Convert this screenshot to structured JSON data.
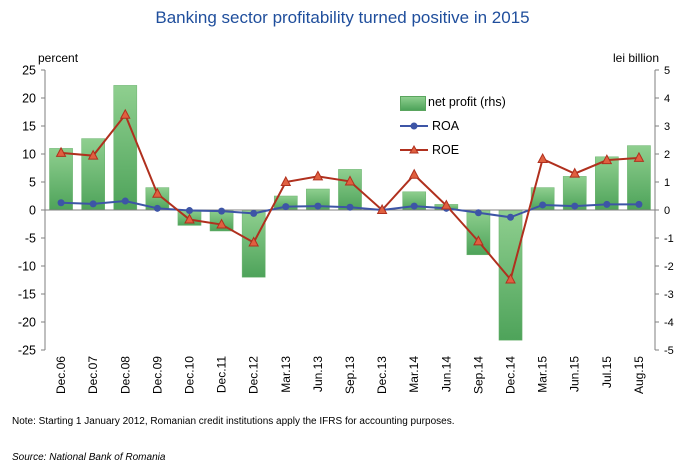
{
  "title": "Banking sector profitability turned positive in 2015",
  "note": "Note: Starting 1 January 2012, Romanian credit institutions apply the IFRS for accounting purposes.",
  "source": "Source: National Bank of Romania",
  "legend": {
    "profit": "net profit (rhs)",
    "roa": "ROA",
    "roe": "ROE"
  },
  "colors": {
    "title": "#1f4e9c",
    "bar_top": "#8fcf8f",
    "bar_bottom": "#4ea35a",
    "roa": "#3d55a6",
    "roe": "#b0301e",
    "roe_marker_fill": "#e06040"
  },
  "chart_data": {
    "type": "bar",
    "title": "Banking sector profitability turned positive in 2015",
    "ylabel": "percent",
    "y2label": "lei billion",
    "ylim": [
      -25,
      25
    ],
    "y2lim": [
      -5,
      5
    ],
    "yticks": [
      "25",
      "20",
      "15",
      "10",
      "5",
      "0",
      "-5",
      "-10",
      "-15",
      "-20",
      "-25"
    ],
    "y2ticks": [
      "5",
      "4",
      "3",
      "2",
      "1",
      "0",
      "-1",
      "-2",
      "-3",
      "-4",
      "-5"
    ],
    "grid": false,
    "legend_position": "top-right",
    "categories": [
      "Dec.06",
      "Dec.07",
      "Dec.08",
      "Dec.09",
      "Dec.10",
      "Dec.11",
      "Dec.12",
      "Mar.13",
      "Jun.13",
      "Sep.13",
      "Dec.13",
      "Mar.14",
      "Jun.14",
      "Sep.14",
      "Dec.14",
      "Mar.15",
      "Jun.15",
      "Jul.15",
      "Aug.15"
    ],
    "series": [
      {
        "name": "net profit (rhs)",
        "type": "bar",
        "axis": "right",
        "values": [
          2.2,
          2.55,
          4.45,
          0.8,
          -0.55,
          -0.75,
          -2.4,
          0.5,
          0.75,
          1.45,
          0.0,
          0.65,
          0.2,
          -1.6,
          -4.65,
          0.8,
          1.2,
          1.9,
          2.3
        ]
      },
      {
        "name": "ROA",
        "type": "line",
        "axis": "left",
        "values": [
          1.3,
          1.1,
          1.6,
          0.3,
          -0.1,
          -0.2,
          -0.6,
          0.6,
          0.7,
          0.5,
          0.0,
          0.7,
          0.3,
          -0.5,
          -1.3,
          0.9,
          0.7,
          1.0,
          1.0
        ]
      },
      {
        "name": "ROE",
        "type": "line",
        "axis": "left",
        "values": [
          10.2,
          9.7,
          17.0,
          2.9,
          -1.7,
          -2.6,
          -5.8,
          5.0,
          6.0,
          5.1,
          0.0,
          6.3,
          0.8,
          -5.6,
          -12.4,
          9.1,
          6.5,
          8.9,
          9.3
        ]
      }
    ]
  }
}
